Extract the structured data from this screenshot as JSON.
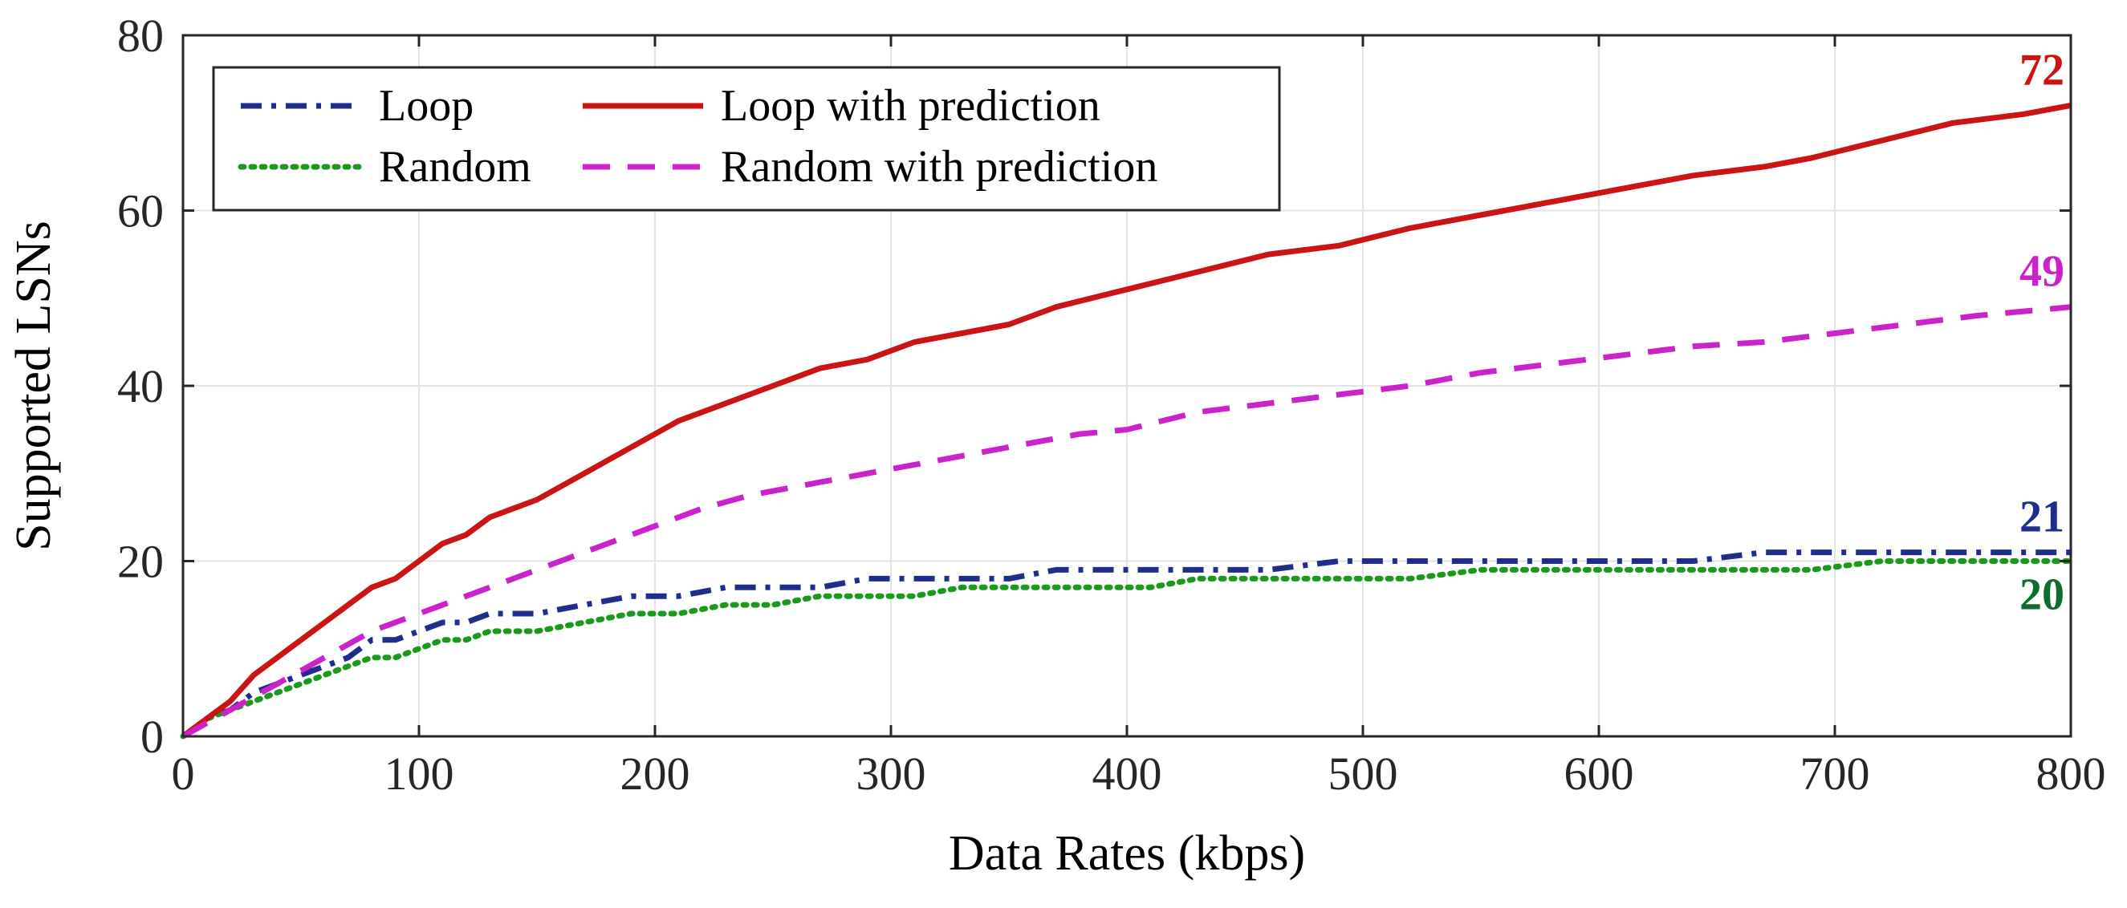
{
  "chart_data": {
    "type": "line",
    "title": "",
    "xlabel": "Data Rates (kbps)",
    "ylabel": "Supported LSNs",
    "xlim": [
      0,
      800
    ],
    "ylim": [
      0,
      80
    ],
    "xticks": [
      0,
      100,
      200,
      300,
      400,
      500,
      600,
      700,
      800
    ],
    "yticks": [
      0,
      20,
      40,
      60,
      80
    ],
    "grid": true,
    "legend_position": "top-left",
    "series": [
      {
        "name": "Loop",
        "color": "#1f2e8c",
        "style": "dashdot",
        "end_label": "21",
        "x": [
          0,
          10,
          20,
          30,
          40,
          50,
          60,
          70,
          80,
          90,
          100,
          110,
          120,
          130,
          150,
          170,
          190,
          210,
          230,
          250,
          270,
          290,
          310,
          330,
          350,
          370,
          390,
          410,
          430,
          460,
          490,
          520,
          550,
          580,
          610,
          640,
          670,
          690,
          720,
          750,
          780,
          800
        ],
        "y": [
          0,
          2,
          3,
          5,
          6,
          7,
          8,
          9,
          11,
          11,
          12,
          13,
          13,
          14,
          14,
          15,
          16,
          16,
          17,
          17,
          17,
          18,
          18,
          18,
          18,
          19,
          19,
          19,
          19,
          19,
          20,
          20,
          20,
          20,
          20,
          20,
          21,
          21,
          21,
          21,
          21,
          21
        ]
      },
      {
        "name": "Random",
        "color": "#1a9a1a",
        "style": "dotted",
        "end_label": "20",
        "x": [
          0,
          10,
          20,
          30,
          40,
          50,
          60,
          70,
          80,
          90,
          100,
          110,
          120,
          130,
          150,
          170,
          190,
          210,
          230,
          250,
          270,
          290,
          310,
          330,
          350,
          370,
          390,
          410,
          430,
          460,
          490,
          520,
          550,
          580,
          610,
          640,
          670,
          690,
          720,
          750,
          780,
          800
        ],
        "y": [
          0,
          2,
          3,
          4,
          5,
          6,
          7,
          8,
          9,
          9,
          10,
          11,
          11,
          12,
          12,
          13,
          14,
          14,
          15,
          15,
          16,
          16,
          16,
          17,
          17,
          17,
          17,
          17,
          18,
          18,
          18,
          18,
          19,
          19,
          19,
          19,
          19,
          19,
          20,
          20,
          20,
          20
        ]
      },
      {
        "name": "Loop with prediction",
        "color": "#cc1414",
        "style": "solid",
        "end_label": "72",
        "x": [
          0,
          5,
          10,
          15,
          20,
          30,
          40,
          50,
          60,
          70,
          80,
          90,
          100,
          110,
          120,
          130,
          150,
          170,
          190,
          210,
          230,
          250,
          270,
          290,
          310,
          330,
          350,
          370,
          400,
          430,
          460,
          490,
          520,
          550,
          580,
          610,
          640,
          670,
          690,
          720,
          750,
          780,
          800
        ],
        "y": [
          0,
          1,
          2,
          3,
          4,
          7,
          9,
          11,
          13,
          15,
          17,
          18,
          20,
          22,
          23,
          25,
          27,
          30,
          33,
          36,
          38,
          40,
          42,
          43,
          45,
          46,
          47,
          49,
          51,
          53,
          55,
          56,
          58,
          59.5,
          61,
          62.5,
          64,
          65,
          66,
          68,
          70,
          71,
          72
        ]
      },
      {
        "name": "Random with prediction",
        "color": "#cc22cc",
        "style": "dashed",
        "end_label": "49",
        "x": [
          0,
          10,
          20,
          30,
          40,
          50,
          60,
          70,
          80,
          100,
          120,
          140,
          160,
          180,
          200,
          220,
          240,
          260,
          280,
          300,
          320,
          340,
          360,
          380,
          400,
          430,
          460,
          490,
          520,
          550,
          580,
          610,
          640,
          670,
          700,
          730,
          760,
          800
        ],
        "y": [
          0,
          1.5,
          3,
          4.5,
          6,
          7.5,
          9,
          10.5,
          12,
          14,
          16,
          18,
          20,
          22,
          24,
          26,
          27.5,
          28.5,
          29.5,
          30.5,
          31.5,
          32.5,
          33.5,
          34.5,
          35,
          37,
          38,
          39,
          40,
          41.5,
          42.5,
          43.5,
          44.5,
          45,
          46,
          47,
          48,
          49
        ]
      }
    ]
  }
}
